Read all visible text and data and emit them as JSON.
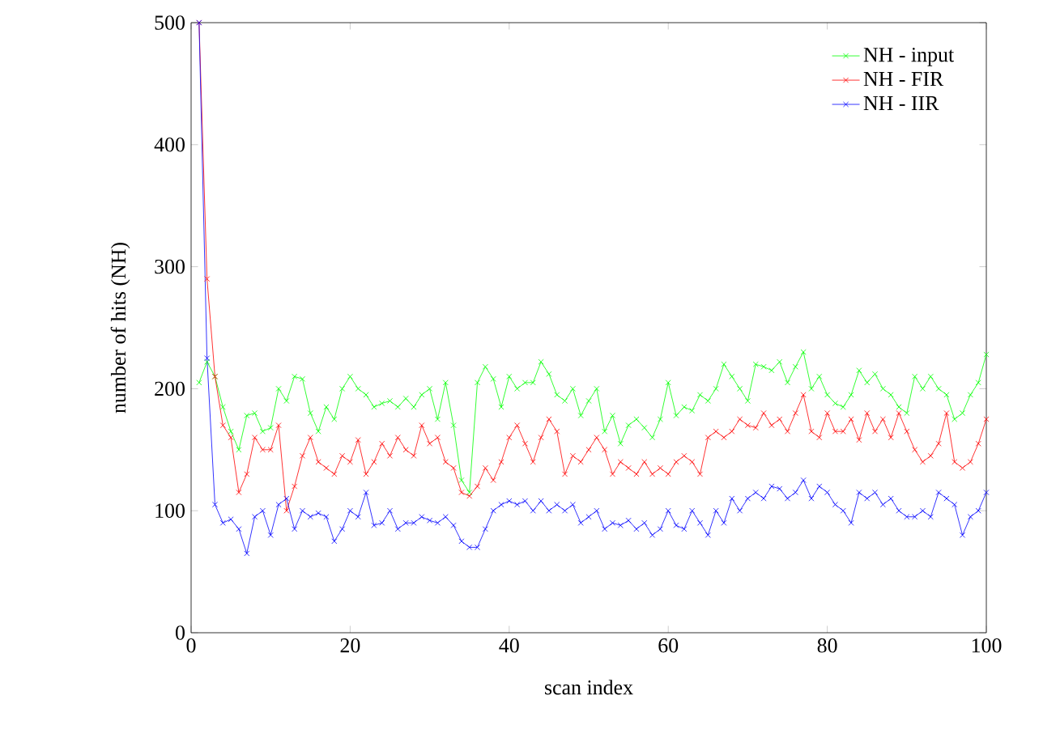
{
  "chart_data": {
    "type": "line",
    "xlabel": "scan index",
    "ylabel": "number of hits (NH)",
    "xlim": [
      0,
      100
    ],
    "ylim": [
      0,
      500
    ],
    "xticks": [
      0,
      20,
      40,
      60,
      80,
      100
    ],
    "yticks": [
      0,
      100,
      200,
      300,
      400,
      500
    ],
    "grid": false,
    "legend": "top right",
    "marker": "cross",
    "line_style": "solid",
    "x": [
      1,
      2,
      3,
      4,
      5,
      6,
      7,
      8,
      9,
      10,
      11,
      12,
      13,
      14,
      15,
      16,
      17,
      18,
      19,
      20,
      21,
      22,
      23,
      24,
      25,
      26,
      27,
      28,
      29,
      30,
      31,
      32,
      33,
      34,
      35,
      36,
      37,
      38,
      39,
      40,
      41,
      42,
      43,
      44,
      45,
      46,
      47,
      48,
      49,
      50,
      51,
      52,
      53,
      54,
      55,
      56,
      57,
      58,
      59,
      60,
      61,
      62,
      63,
      64,
      65,
      66,
      67,
      68,
      69,
      70,
      71,
      72,
      73,
      74,
      75,
      76,
      77,
      78,
      79,
      80,
      81,
      82,
      83,
      84,
      85,
      86,
      87,
      88,
      89,
      90,
      91,
      92,
      93,
      94,
      95,
      96,
      97,
      98,
      99,
      100
    ],
    "series": [
      {
        "name": "NH - input",
        "color": "#00ff00",
        "values": [
          205,
          222,
          210,
          185,
          165,
          150,
          178,
          180,
          165,
          168,
          200,
          190,
          210,
          208,
          180,
          165,
          185,
          175,
          200,
          210,
          200,
          195,
          185,
          188,
          190,
          185,
          192,
          185,
          195,
          200,
          175,
          205,
          170,
          125,
          115,
          205,
          218,
          208,
          185,
          210,
          200,
          205,
          205,
          222,
          212,
          195,
          190,
          200,
          178,
          190,
          200,
          165,
          178,
          155,
          170,
          175,
          168,
          160,
          175,
          205,
          178,
          185,
          182,
          195,
          190,
          200,
          220,
          210,
          200,
          190,
          220,
          218,
          215,
          222,
          205,
          218,
          230,
          200,
          210,
          195,
          188,
          185,
          195,
          215,
          205,
          212,
          200,
          195,
          185,
          180,
          210,
          200,
          210,
          200,
          195,
          175,
          180,
          195,
          205,
          228
        ]
      },
      {
        "name": "NH - FIR",
        "color": "#ff0000",
        "values": [
          500,
          290,
          210,
          170,
          160,
          115,
          130,
          160,
          150,
          150,
          170,
          100,
          120,
          145,
          160,
          140,
          135,
          130,
          145,
          140,
          158,
          130,
          140,
          155,
          145,
          160,
          150,
          145,
          170,
          155,
          160,
          140,
          135,
          115,
          112,
          120,
          135,
          125,
          140,
          160,
          170,
          155,
          140,
          160,
          175,
          165,
          130,
          145,
          140,
          150,
          160,
          150,
          130,
          140,
          135,
          130,
          140,
          130,
          135,
          130,
          140,
          145,
          140,
          130,
          160,
          165,
          160,
          165,
          175,
          170,
          168,
          180,
          170,
          175,
          165,
          180,
          195,
          165,
          160,
          180,
          165,
          165,
          175,
          158,
          180,
          165,
          175,
          160,
          180,
          165,
          150,
          140,
          145,
          155,
          180,
          140,
          135,
          140,
          155,
          175
        ]
      },
      {
        "name": "NH - IIR",
        "color": "#0000ff",
        "values": [
          500,
          225,
          105,
          90,
          93,
          85,
          65,
          95,
          100,
          80,
          105,
          110,
          85,
          100,
          95,
          98,
          95,
          75,
          85,
          100,
          95,
          115,
          88,
          90,
          100,
          85,
          90,
          90,
          95,
          92,
          90,
          95,
          88,
          75,
          70,
          70,
          85,
          100,
          105,
          108,
          105,
          108,
          100,
          108,
          100,
          105,
          100,
          105,
          90,
          95,
          100,
          85,
          90,
          88,
          92,
          85,
          90,
          80,
          85,
          100,
          88,
          85,
          100,
          90,
          80,
          100,
          90,
          110,
          100,
          110,
          115,
          110,
          120,
          118,
          110,
          115,
          125,
          110,
          120,
          115,
          105,
          100,
          90,
          115,
          110,
          115,
          105,
          110,
          100,
          95,
          95,
          100,
          95,
          115,
          110,
          105,
          80,
          95,
          100,
          115
        ]
      }
    ]
  }
}
